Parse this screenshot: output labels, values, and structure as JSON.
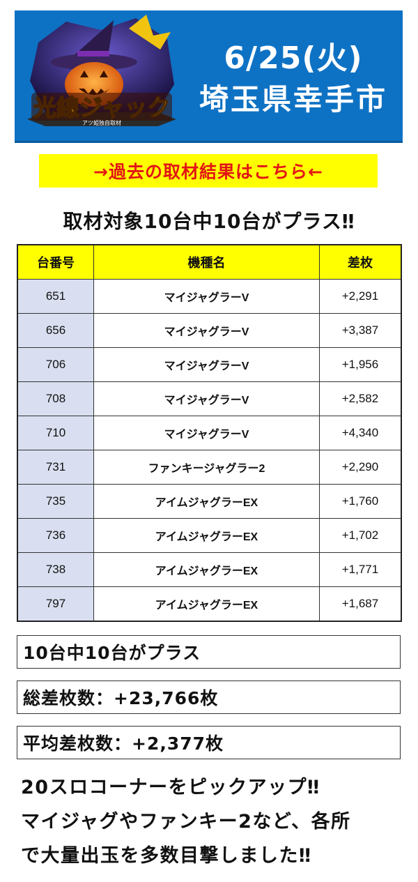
{
  "banner": {
    "logo_text": "光線ジャック",
    "logo_subtext": "アツ姫独自取材",
    "date": "6/25(火)",
    "place": "埼玉県幸手市"
  },
  "link_text": "→過去の取材結果はこちら←",
  "headline": "取材対象10台中10台がプラス‼",
  "table": {
    "headers": [
      "台番号",
      "機種名",
      "差枚"
    ],
    "rows": [
      {
        "num": "651",
        "name": "マイジャグラーV",
        "diff": "+2,291"
      },
      {
        "num": "656",
        "name": "マイジャグラーV",
        "diff": "+3,387"
      },
      {
        "num": "706",
        "name": "マイジャグラーV",
        "diff": "+1,956"
      },
      {
        "num": "708",
        "name": "マイジャグラーV",
        "diff": "+2,582"
      },
      {
        "num": "710",
        "name": "マイジャグラーV",
        "diff": "+4,340"
      },
      {
        "num": "731",
        "name": "ファンキージャグラー2",
        "diff": "+2,290"
      },
      {
        "num": "735",
        "name": "アイムジャグラーEX",
        "diff": "+1,760"
      },
      {
        "num": "736",
        "name": "アイムジャグラーEX",
        "diff": "+1,702"
      },
      {
        "num": "738",
        "name": "アイムジャグラーEX",
        "diff": "+1,771"
      },
      {
        "num": "797",
        "name": "アイムジャグラーEX",
        "diff": "+1,687"
      }
    ]
  },
  "summary": {
    "plus_count": "10台中10台がプラス",
    "total": "総差枚数：+23,766枚",
    "average": "平均差枚数：+2,377枚"
  },
  "comment": {
    "line1": "20スロコーナーをピックアップ‼",
    "line2": "マイジャグやファンキー2など、各所",
    "line3": "で大量出玉を多数目撃しました‼"
  },
  "colors": {
    "banner_bg": "#0e72c4",
    "link_bg": "#ffff00",
    "link_text": "#e21515",
    "header_bg": "#ffff00",
    "num_cell_bg": "#d9dff0"
  }
}
